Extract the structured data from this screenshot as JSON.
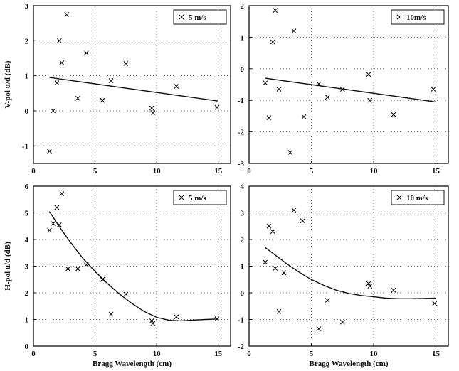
{
  "chart_data": [
    {
      "type": "scatter",
      "panel": "top-left",
      "xlim": [
        0,
        16
      ],
      "ylim": [
        -1.5,
        3
      ],
      "xticks": [
        0,
        5,
        10,
        15
      ],
      "yticks": [
        -1,
        0,
        1,
        2,
        3
      ],
      "xlabel": "",
      "ylabel": "V-pol u/d (dB)",
      "grid": true,
      "legend": {
        "label": "5 m/s",
        "placement": "top-right",
        "marker": "x"
      },
      "points": [
        [
          1.3,
          -1.15
        ],
        [
          1.6,
          0.0
        ],
        [
          1.9,
          0.8
        ],
        [
          2.1,
          2.0
        ],
        [
          2.3,
          1.37
        ],
        [
          2.7,
          2.75
        ],
        [
          3.6,
          0.36
        ],
        [
          4.3,
          1.65
        ],
        [
          5.6,
          0.3
        ],
        [
          6.3,
          0.86
        ],
        [
          7.5,
          1.35
        ],
        [
          9.6,
          0.08
        ],
        [
          9.7,
          -0.05
        ],
        [
          11.6,
          0.7
        ],
        [
          14.9,
          0.1
        ]
      ],
      "fit": [
        [
          1.3,
          0.95
        ],
        [
          15.0,
          0.28
        ]
      ]
    },
    {
      "type": "scatter",
      "panel": "top-right",
      "xlim": [
        0,
        16
      ],
      "ylim": [
        -3,
        2
      ],
      "xticks": [
        0,
        5,
        10,
        15
      ],
      "yticks": [
        -3,
        -2,
        -1,
        0,
        1,
        2
      ],
      "xlabel": "",
      "ylabel": "",
      "grid": true,
      "legend": {
        "label": "10m/s",
        "placement": "top-right",
        "marker": "x"
      },
      "points": [
        [
          1.3,
          -0.45
        ],
        [
          1.6,
          -1.55
        ],
        [
          1.9,
          0.85
        ],
        [
          2.1,
          1.85
        ],
        [
          2.4,
          -0.65
        ],
        [
          3.3,
          -2.65
        ],
        [
          3.6,
          1.2
        ],
        [
          4.4,
          -1.52
        ],
        [
          5.6,
          -0.48
        ],
        [
          6.3,
          -0.9
        ],
        [
          7.5,
          -0.65
        ],
        [
          9.6,
          -0.18
        ],
        [
          9.7,
          -1.0
        ],
        [
          11.6,
          -1.45
        ],
        [
          14.8,
          -0.65
        ]
      ],
      "fit": [
        [
          1.3,
          -0.3
        ],
        [
          15.0,
          -1.05
        ]
      ]
    },
    {
      "type": "scatter",
      "panel": "bottom-left",
      "xlim": [
        0,
        16
      ],
      "ylim": [
        0,
        6
      ],
      "xticks": [
        0,
        5,
        10,
        15
      ],
      "yticks": [
        0,
        1,
        2,
        3,
        4,
        5,
        6
      ],
      "xlabel": "Bragg Wavelength (cm)",
      "ylabel": "H-pol u/d (dB)",
      "grid": true,
      "legend": {
        "label": "5 m/s",
        "placement": "top-right",
        "marker": "x"
      },
      "points": [
        [
          1.3,
          4.35
        ],
        [
          1.6,
          4.6
        ],
        [
          1.9,
          5.2
        ],
        [
          2.1,
          4.55
        ],
        [
          2.3,
          5.72
        ],
        [
          2.8,
          2.9
        ],
        [
          3.6,
          2.9
        ],
        [
          4.3,
          3.05
        ],
        [
          5.6,
          2.5
        ],
        [
          6.3,
          1.2
        ],
        [
          7.5,
          1.95
        ],
        [
          9.6,
          0.95
        ],
        [
          9.7,
          0.85
        ],
        [
          11.6,
          1.1
        ],
        [
          14.9,
          1.02
        ]
      ],
      "fit": [
        [
          1.3,
          5.05
        ],
        [
          2.0,
          4.55
        ],
        [
          3.0,
          3.9
        ],
        [
          4.0,
          3.3
        ],
        [
          5.0,
          2.8
        ],
        [
          6.0,
          2.35
        ],
        [
          7.0,
          1.95
        ],
        [
          8.0,
          1.6
        ],
        [
          9.0,
          1.3
        ],
        [
          10.0,
          1.08
        ],
        [
          11.0,
          0.97
        ],
        [
          12.0,
          0.95
        ],
        [
          13.0,
          0.98
        ],
        [
          14.0,
          1.0
        ],
        [
          15.0,
          1.02
        ]
      ]
    },
    {
      "type": "scatter",
      "panel": "bottom-right",
      "xlim": [
        0,
        16
      ],
      "ylim": [
        -2,
        4
      ],
      "xticks": [
        0,
        5,
        10,
        15
      ],
      "yticks": [
        -2,
        -1,
        0,
        1,
        2,
        3,
        4
      ],
      "xlabel": "Bragg Wavelength (cm)",
      "ylabel": "",
      "grid": true,
      "legend": {
        "label": "10 m/s",
        "placement": "top-right",
        "marker": "x"
      },
      "points": [
        [
          1.3,
          1.15
        ],
        [
          1.6,
          2.5
        ],
        [
          1.9,
          2.3
        ],
        [
          2.1,
          0.92
        ],
        [
          2.4,
          -0.7
        ],
        [
          2.8,
          0.75
        ],
        [
          3.6,
          3.1
        ],
        [
          4.3,
          2.7
        ],
        [
          5.6,
          -1.35
        ],
        [
          6.3,
          -0.28
        ],
        [
          7.5,
          -1.1
        ],
        [
          9.6,
          0.35
        ],
        [
          9.7,
          0.25
        ],
        [
          11.6,
          0.1
        ],
        [
          14.9,
          -0.4
        ]
      ],
      "fit": [
        [
          1.3,
          1.7
        ],
        [
          2.0,
          1.45
        ],
        [
          3.0,
          1.1
        ],
        [
          4.0,
          0.78
        ],
        [
          5.0,
          0.5
        ],
        [
          6.0,
          0.28
        ],
        [
          7.0,
          0.1
        ],
        [
          8.0,
          -0.02
        ],
        [
          9.0,
          -0.1
        ],
        [
          10.0,
          -0.15
        ],
        [
          11.0,
          -0.2
        ],
        [
          12.0,
          -0.22
        ],
        [
          13.0,
          -0.22
        ],
        [
          14.0,
          -0.21
        ],
        [
          15.0,
          -0.2
        ]
      ]
    }
  ]
}
